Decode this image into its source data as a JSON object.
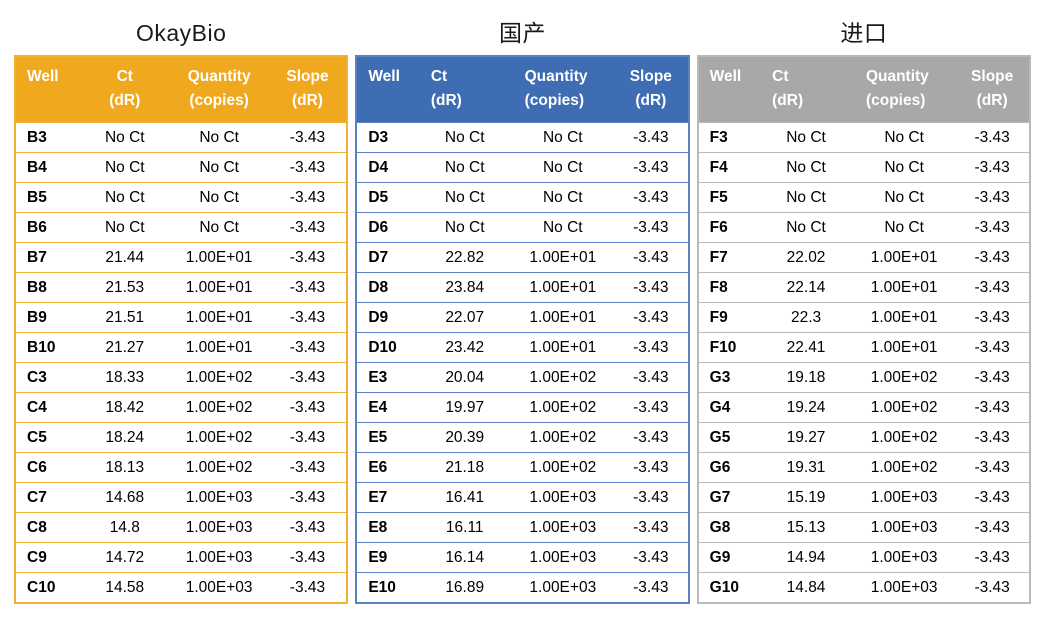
{
  "page": {
    "background": "#FFFFFF",
    "text_color": "#000000"
  },
  "chart_data": [
    {
      "type": "table",
      "title": "OkayBio",
      "header_bg": "#F0A81E",
      "line_color": "#F2B135",
      "header_text_color": "#FFFFFF",
      "header_align": "center",
      "columns": [
        [
          "Well",
          ""
        ],
        [
          "Ct",
          "(dR)"
        ],
        [
          "Quantity",
          "(copies)"
        ],
        [
          "Slope",
          "(dR)"
        ]
      ],
      "rows": [
        [
          "B3",
          "No Ct",
          "No Ct",
          "-3.43"
        ],
        [
          "B4",
          "No Ct",
          "No Ct",
          "-3.43"
        ],
        [
          "B5",
          "No Ct",
          "No Ct",
          "-3.43"
        ],
        [
          "B6",
          "No Ct",
          "No Ct",
          "-3.43"
        ],
        [
          "B7",
          "21.44",
          "1.00E+01",
          "-3.43"
        ],
        [
          "B8",
          "21.53",
          "1.00E+01",
          "-3.43"
        ],
        [
          "B9",
          "21.51",
          "1.00E+01",
          "-3.43"
        ],
        [
          "B10",
          "21.27",
          "1.00E+01",
          "-3.43"
        ],
        [
          "C3",
          "18.33",
          "1.00E+02",
          "-3.43"
        ],
        [
          "C4",
          "18.42",
          "1.00E+02",
          "-3.43"
        ],
        [
          "C5",
          "18.24",
          "1.00E+02",
          "-3.43"
        ],
        [
          "C6",
          "18.13",
          "1.00E+02",
          "-3.43"
        ],
        [
          "C7",
          "14.68",
          "1.00E+03",
          "-3.43"
        ],
        [
          "C8",
          "14.8",
          "1.00E+03",
          "-3.43"
        ],
        [
          "C9",
          "14.72",
          "1.00E+03",
          "-3.43"
        ],
        [
          "C10",
          "14.58",
          "1.00E+03",
          "-3.43"
        ]
      ]
    },
    {
      "type": "table",
      "title": "国产",
      "header_bg": "#3E6DB3",
      "line_color": "#5B82C2",
      "header_text_color": "#FFFFFF",
      "header_align": "left",
      "columns": [
        [
          "Well",
          ""
        ],
        [
          "Ct",
          "(dR)"
        ],
        [
          "Quantity",
          "(copies)"
        ],
        [
          "Slope",
          "(dR)"
        ]
      ],
      "rows": [
        [
          "D3",
          "No Ct",
          "No Ct",
          "-3.43"
        ],
        [
          "D4",
          "No Ct",
          "No Ct",
          "-3.43"
        ],
        [
          "D5",
          "No Ct",
          "No Ct",
          "-3.43"
        ],
        [
          "D6",
          "No Ct",
          "No Ct",
          "-3.43"
        ],
        [
          "D7",
          "22.82",
          "1.00E+01",
          "-3.43"
        ],
        [
          "D8",
          "23.84",
          "1.00E+01",
          "-3.43"
        ],
        [
          "D9",
          "22.07",
          "1.00E+01",
          "-3.43"
        ],
        [
          "D10",
          "23.42",
          "1.00E+01",
          "-3.43"
        ],
        [
          "E3",
          "20.04",
          "1.00E+02",
          "-3.43"
        ],
        [
          "E4",
          "19.97",
          "1.00E+02",
          "-3.43"
        ],
        [
          "E5",
          "20.39",
          "1.00E+02",
          "-3.43"
        ],
        [
          "E6",
          "21.18",
          "1.00E+02",
          "-3.43"
        ],
        [
          "E7",
          "16.41",
          "1.00E+03",
          "-3.43"
        ],
        [
          "E8",
          "16.11",
          "1.00E+03",
          "-3.43"
        ],
        [
          "E9",
          "16.14",
          "1.00E+03",
          "-3.43"
        ],
        [
          "E10",
          "16.89",
          "1.00E+03",
          "-3.43"
        ]
      ]
    },
    {
      "type": "table",
      "title": "进口",
      "header_bg": "#A8A8A8",
      "line_color": "#B9B9B9",
      "header_text_color": "#FFFFFF",
      "header_align": "left",
      "columns": [
        [
          "Well",
          ""
        ],
        [
          "Ct",
          "(dR)"
        ],
        [
          "Quantity",
          "(copies)"
        ],
        [
          "Slope",
          "(dR)"
        ]
      ],
      "rows": [
        [
          "F3",
          "No Ct",
          "No Ct",
          "-3.43"
        ],
        [
          "F4",
          "No Ct",
          "No Ct",
          "-3.43"
        ],
        [
          "F5",
          "No Ct",
          "No Ct",
          "-3.43"
        ],
        [
          "F6",
          "No Ct",
          "No Ct",
          "-3.43"
        ],
        [
          "F7",
          "22.02",
          "1.00E+01",
          "-3.43"
        ],
        [
          "F8",
          "22.14",
          "1.00E+01",
          "-3.43"
        ],
        [
          "F9",
          "22.3",
          "1.00E+01",
          "-3.43"
        ],
        [
          "F10",
          "22.41",
          "1.00E+01",
          "-3.43"
        ],
        [
          "G3",
          "19.18",
          "1.00E+02",
          "-3.43"
        ],
        [
          "G4",
          "19.24",
          "1.00E+02",
          "-3.43"
        ],
        [
          "G5",
          "19.27",
          "1.00E+02",
          "-3.43"
        ],
        [
          "G6",
          "19.31",
          "1.00E+02",
          "-3.43"
        ],
        [
          "G7",
          "15.19",
          "1.00E+03",
          "-3.43"
        ],
        [
          "G8",
          "15.13",
          "1.00E+03",
          "-3.43"
        ],
        [
          "G9",
          "14.94",
          "1.00E+03",
          "-3.43"
        ],
        [
          "G10",
          "14.84",
          "1.00E+03",
          "-3.43"
        ]
      ]
    }
  ]
}
